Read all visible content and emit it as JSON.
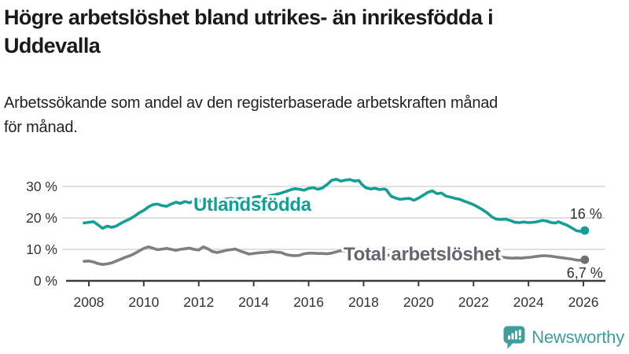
{
  "header": {
    "title_line1": "Högre arbetslöshet bland utrikes- än inrikesfödda i",
    "title_line2": "Uddevalla",
    "subtitle_line1": "Arbetssökande som andel av den registerbaserade arbetskraften månad",
    "subtitle_line2": "för månad."
  },
  "footer": {
    "brand": "Newsworthy",
    "brand_color": "#3f9e9c",
    "logo_icon": "bar-chart-speech-bubble-icon"
  },
  "colors": {
    "teal_series": "#149e95",
    "gray_series": "#7f7f82",
    "gray_label": "#636570",
    "annotation": "#2d2d2d",
    "axis": "#3d3d3d",
    "tick_label": "#333333",
    "gridline": "#dcdcdc",
    "background": "#ffffff"
  },
  "chart_data": {
    "type": "line",
    "title": "Högre arbetslöshet bland utrikes- än inrikesfödda i Uddevalla",
    "subtitle": "Arbetssökande som andel av den registerbaserade arbetskraften månad för månad.",
    "xlabel": "",
    "ylabel": "",
    "grid": "horizontal",
    "legend_position": "inline-labels",
    "xlim": [
      2007.2,
      2026.8
    ],
    "ylim": [
      0,
      33.75
    ],
    "x_ticks": {
      "values": [
        2008,
        2010,
        2012,
        2014,
        2016,
        2018,
        2020,
        2022,
        2024,
        2026
      ],
      "labels": [
        "2008",
        "2010",
        "2012",
        "2014",
        "2016",
        "2018",
        "2020",
        "2022",
        "2024",
        "2026"
      ]
    },
    "y_ticks": {
      "values": [
        0,
        10,
        20,
        30
      ],
      "labels": [
        "0 %",
        "10 %",
        "20 %",
        "30 %"
      ]
    },
    "series": [
      {
        "name": "Utlandsfödda",
        "color": "#149e95",
        "label_color": "#149e95",
        "end_label": "16 %",
        "end_value": 16,
        "points": [
          [
            2007.83,
            18.4
          ],
          [
            2008.0,
            18.6
          ],
          [
            2008.17,
            18.8
          ],
          [
            2008.33,
            17.8
          ],
          [
            2008.5,
            16.7
          ],
          [
            2008.67,
            17.4
          ],
          [
            2008.83,
            17.0
          ],
          [
            2009.0,
            17.4
          ],
          [
            2009.17,
            18.3
          ],
          [
            2009.33,
            19.0
          ],
          [
            2009.5,
            19.7
          ],
          [
            2009.67,
            20.6
          ],
          [
            2009.83,
            21.6
          ],
          [
            2010.0,
            22.4
          ],
          [
            2010.17,
            23.5
          ],
          [
            2010.33,
            24.2
          ],
          [
            2010.5,
            24.4
          ],
          [
            2010.67,
            23.9
          ],
          [
            2010.83,
            23.7
          ],
          [
            2011.0,
            24.4
          ],
          [
            2011.17,
            25.0
          ],
          [
            2011.33,
            24.6
          ],
          [
            2011.5,
            25.2
          ],
          [
            2011.67,
            24.8
          ],
          [
            2011.83,
            25.4
          ],
          [
            2012.0,
            25.2
          ],
          [
            2012.17,
            26.0
          ],
          [
            2012.33,
            25.6
          ],
          [
            2012.5,
            25.8
          ],
          [
            2012.67,
            25.5
          ],
          [
            2012.83,
            25.8
          ],
          [
            2013.0,
            26.0
          ],
          [
            2013.17,
            26.2
          ],
          [
            2013.33,
            25.9
          ],
          [
            2013.5,
            26.2
          ],
          [
            2013.67,
            26.0
          ],
          [
            2013.83,
            26.3
          ],
          [
            2014.0,
            26.5
          ],
          [
            2014.17,
            26.8
          ],
          [
            2014.33,
            26.6
          ],
          [
            2014.5,
            27.0
          ],
          [
            2014.67,
            27.2
          ],
          [
            2014.83,
            27.5
          ],
          [
            2015.0,
            27.9
          ],
          [
            2015.17,
            28.4
          ],
          [
            2015.33,
            28.9
          ],
          [
            2015.5,
            29.3
          ],
          [
            2015.67,
            29.1
          ],
          [
            2015.83,
            28.8
          ],
          [
            2016.0,
            29.4
          ],
          [
            2016.17,
            29.6
          ],
          [
            2016.33,
            29.1
          ],
          [
            2016.5,
            29.5
          ],
          [
            2016.67,
            30.6
          ],
          [
            2016.83,
            31.9
          ],
          [
            2017.0,
            32.3
          ],
          [
            2017.17,
            31.7
          ],
          [
            2017.33,
            32.0
          ],
          [
            2017.5,
            32.2
          ],
          [
            2017.67,
            31.7
          ],
          [
            2017.83,
            31.9
          ],
          [
            2017.92,
            30.8
          ],
          [
            2018.08,
            29.6
          ],
          [
            2018.25,
            29.2
          ],
          [
            2018.42,
            29.4
          ],
          [
            2018.58,
            29.0
          ],
          [
            2018.75,
            29.2
          ],
          [
            2018.83,
            28.9
          ],
          [
            2018.92,
            27.8
          ],
          [
            2019.0,
            26.9
          ],
          [
            2019.17,
            26.3
          ],
          [
            2019.33,
            25.9
          ],
          [
            2019.5,
            26.1
          ],
          [
            2019.67,
            26.2
          ],
          [
            2019.83,
            25.6
          ],
          [
            2020.0,
            26.3
          ],
          [
            2020.17,
            27.2
          ],
          [
            2020.33,
            28.1
          ],
          [
            2020.5,
            28.6
          ],
          [
            2020.67,
            27.7
          ],
          [
            2020.83,
            27.9
          ],
          [
            2021.0,
            26.9
          ],
          [
            2021.17,
            26.6
          ],
          [
            2021.33,
            26.2
          ],
          [
            2021.5,
            25.9
          ],
          [
            2021.67,
            25.3
          ],
          [
            2021.83,
            24.8
          ],
          [
            2022.0,
            24.2
          ],
          [
            2022.17,
            23.4
          ],
          [
            2022.33,
            22.6
          ],
          [
            2022.5,
            21.6
          ],
          [
            2022.67,
            20.3
          ],
          [
            2022.83,
            19.6
          ],
          [
            2023.0,
            19.5
          ],
          [
            2023.17,
            19.6
          ],
          [
            2023.33,
            19.2
          ],
          [
            2023.5,
            18.6
          ],
          [
            2023.67,
            18.5
          ],
          [
            2023.83,
            18.7
          ],
          [
            2024.0,
            18.5
          ],
          [
            2024.17,
            18.6
          ],
          [
            2024.33,
            18.8
          ],
          [
            2024.5,
            19.2
          ],
          [
            2024.67,
            19.0
          ],
          [
            2024.83,
            18.5
          ],
          [
            2025.0,
            18.4
          ],
          [
            2025.08,
            18.8
          ],
          [
            2025.25,
            18.2
          ],
          [
            2025.42,
            17.6
          ],
          [
            2025.58,
            16.8
          ],
          [
            2025.75,
            15.9
          ],
          [
            2025.92,
            15.7
          ],
          [
            2026.05,
            16.0
          ]
        ]
      },
      {
        "name": "Total arbetslöshet",
        "color": "#7f7f82",
        "label_color": "#636570",
        "end_label": "6,7 %",
        "end_value": 6.7,
        "points": [
          [
            2007.83,
            6.2
          ],
          [
            2008.0,
            6.3
          ],
          [
            2008.17,
            6.0
          ],
          [
            2008.33,
            5.5
          ],
          [
            2008.5,
            5.2
          ],
          [
            2008.67,
            5.4
          ],
          [
            2008.83,
            5.7
          ],
          [
            2009.0,
            6.3
          ],
          [
            2009.17,
            6.9
          ],
          [
            2009.33,
            7.5
          ],
          [
            2009.5,
            8.0
          ],
          [
            2009.67,
            8.7
          ],
          [
            2009.83,
            9.5
          ],
          [
            2010.0,
            10.3
          ],
          [
            2010.17,
            10.8
          ],
          [
            2010.33,
            10.4
          ],
          [
            2010.5,
            9.9
          ],
          [
            2010.67,
            10.1
          ],
          [
            2010.83,
            10.3
          ],
          [
            2011.0,
            10.0
          ],
          [
            2011.17,
            9.7
          ],
          [
            2011.33,
            10.0
          ],
          [
            2011.5,
            10.2
          ],
          [
            2011.67,
            10.4
          ],
          [
            2011.83,
            10.0
          ],
          [
            2012.0,
            9.8
          ],
          [
            2012.17,
            10.8
          ],
          [
            2012.33,
            10.2
          ],
          [
            2012.5,
            9.3
          ],
          [
            2012.67,
            9.0
          ],
          [
            2012.83,
            9.3
          ],
          [
            2013.0,
            9.7
          ],
          [
            2013.17,
            9.9
          ],
          [
            2013.33,
            10.1
          ],
          [
            2013.5,
            9.5
          ],
          [
            2013.67,
            9.0
          ],
          [
            2013.83,
            8.5
          ],
          [
            2014.0,
            8.7
          ],
          [
            2014.17,
            8.9
          ],
          [
            2014.33,
            9.0
          ],
          [
            2014.5,
            9.1
          ],
          [
            2014.67,
            9.3
          ],
          [
            2014.83,
            9.1
          ],
          [
            2015.0,
            9.0
          ],
          [
            2015.17,
            8.4
          ],
          [
            2015.33,
            8.1
          ],
          [
            2015.5,
            8.0
          ],
          [
            2015.67,
            8.1
          ],
          [
            2015.83,
            8.6
          ],
          [
            2016.0,
            8.8
          ],
          [
            2016.17,
            8.8
          ],
          [
            2016.33,
            8.7
          ],
          [
            2016.5,
            8.7
          ],
          [
            2016.67,
            8.6
          ],
          [
            2016.83,
            8.8
          ],
          [
            2017.0,
            9.2
          ],
          [
            2017.17,
            9.6
          ],
          [
            2017.33,
            9.4
          ],
          [
            2017.5,
            9.2
          ],
          [
            2017.67,
            9.0
          ],
          [
            2017.83,
            8.8
          ],
          [
            2018.0,
            8.6
          ],
          [
            2018.25,
            8.4
          ],
          [
            2018.5,
            8.3
          ],
          [
            2018.75,
            8.2
          ],
          [
            2019.0,
            8.1
          ],
          [
            2019.25,
            8.1
          ],
          [
            2019.5,
            8.2
          ],
          [
            2019.75,
            8.3
          ],
          [
            2020.0,
            8.6
          ],
          [
            2020.25,
            9.3
          ],
          [
            2020.5,
            9.5
          ],
          [
            2020.75,
            9.3
          ],
          [
            2021.0,
            9.0
          ],
          [
            2021.25,
            8.8
          ],
          [
            2021.5,
            8.6
          ],
          [
            2021.75,
            8.4
          ],
          [
            2022.0,
            8.3
          ],
          [
            2022.25,
            8.2
          ],
          [
            2022.5,
            8.1
          ],
          [
            2022.75,
            8.0
          ],
          [
            2022.92,
            7.8
          ],
          [
            2023.08,
            7.5
          ],
          [
            2023.25,
            7.3
          ],
          [
            2023.42,
            7.2
          ],
          [
            2023.58,
            7.3
          ],
          [
            2023.75,
            7.2
          ],
          [
            2023.92,
            7.4
          ],
          [
            2024.08,
            7.5
          ],
          [
            2024.25,
            7.7
          ],
          [
            2024.42,
            7.9
          ],
          [
            2024.58,
            8.0
          ],
          [
            2024.75,
            7.9
          ],
          [
            2024.92,
            7.7
          ],
          [
            2025.08,
            7.5
          ],
          [
            2025.25,
            7.3
          ],
          [
            2025.42,
            7.1
          ],
          [
            2025.58,
            6.9
          ],
          [
            2025.75,
            6.6
          ],
          [
            2025.92,
            6.5
          ],
          [
            2026.05,
            6.7
          ]
        ]
      }
    ]
  }
}
